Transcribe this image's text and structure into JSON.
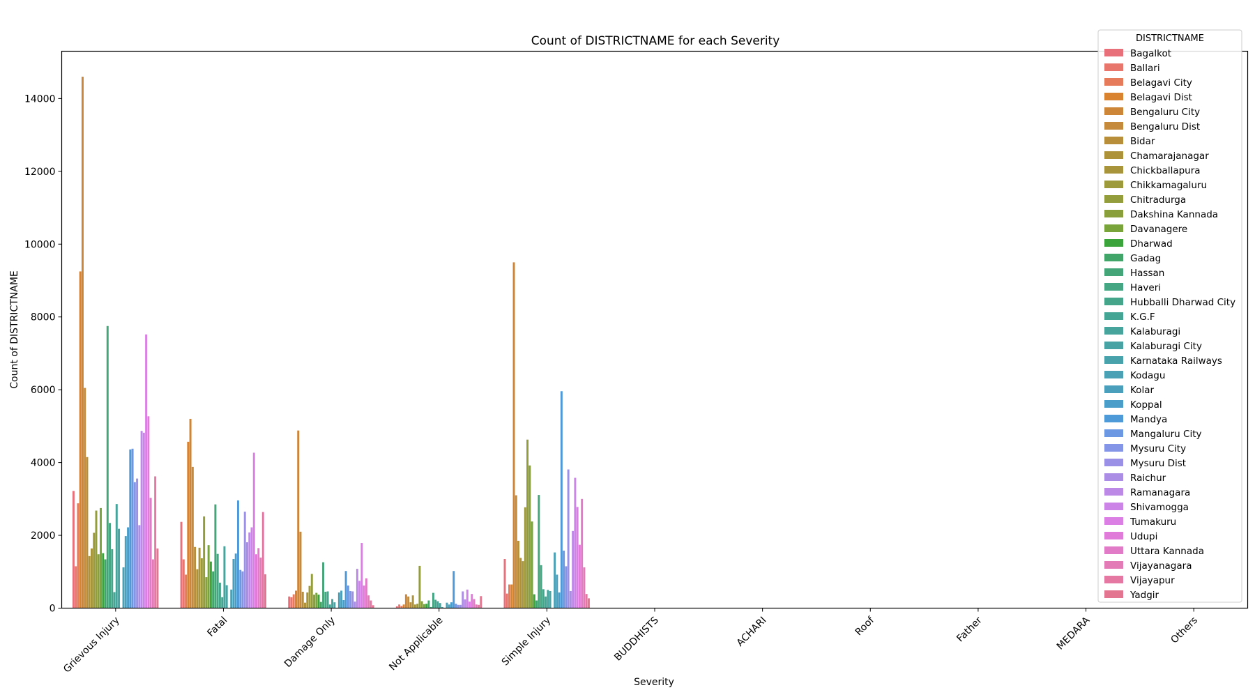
{
  "chart_data": {
    "type": "bar",
    "title": "Count of DISTRICTNAME for each Severity",
    "xlabel": "Severity",
    "ylabel": "Count of DISTRICTNAME",
    "ylim": [
      0,
      15300
    ],
    "yticks": [
      0,
      2000,
      4000,
      6000,
      8000,
      10000,
      12000,
      14000
    ],
    "grid": false,
    "legend_title": "DISTRICTNAME",
    "legend_position": "top-right",
    "categories": [
      "Grievous Injury",
      "Fatal",
      "Damage Only",
      "Not Applicable",
      "Simple Injury",
      "BUDDHISTS",
      "ACHARI",
      "Roof",
      "Father",
      "MEDARA",
      "Others"
    ],
    "series": [
      {
        "name": "Bagalkot",
        "color": "#e8707a",
        "values": [
          3220,
          2370,
          320,
          50,
          1350,
          0,
          0,
          0,
          0,
          0,
          0
        ]
      },
      {
        "name": "Ballari",
        "color": "#e8766d",
        "values": [
          1150,
          1340,
          300,
          100,
          400,
          0,
          0,
          0,
          0,
          0,
          0
        ]
      },
      {
        "name": "Belagavi City",
        "color": "#e67b5c",
        "values": [
          2880,
          920,
          380,
          60,
          650,
          0,
          0,
          0,
          0,
          0,
          0
        ]
      },
      {
        "name": "Belagavi Dist",
        "color": "#d9822f",
        "values": [
          9250,
          4570,
          480,
          100,
          650,
          0,
          0,
          0,
          0,
          0,
          0
        ]
      },
      {
        "name": "Bengaluru City",
        "color": "#cd8537",
        "values": [
          14600,
          5200,
          4880,
          380,
          9500,
          0,
          0,
          0,
          0,
          0,
          0
        ]
      },
      {
        "name": "Bengaluru Dist",
        "color": "#c68a3c",
        "values": [
          6050,
          3880,
          2100,
          320,
          3100,
          0,
          0,
          0,
          0,
          0,
          0
        ]
      },
      {
        "name": "Bidar",
        "color": "#b98e3a",
        "values": [
          4150,
          1680,
          450,
          160,
          1850,
          0,
          0,
          0,
          0,
          0,
          0
        ]
      },
      {
        "name": "Chamarajanagar",
        "color": "#ae923a",
        "values": [
          1430,
          1070,
          150,
          350,
          1380,
          0,
          0,
          0,
          0,
          0,
          0
        ]
      },
      {
        "name": "Chickballapura",
        "color": "#a8953b",
        "values": [
          1640,
          1660,
          430,
          100,
          1290,
          0,
          0,
          0,
          0,
          0,
          0
        ]
      },
      {
        "name": "Chikkamagaluru",
        "color": "#9d9a3b",
        "values": [
          2070,
          1370,
          610,
          120,
          2770,
          0,
          0,
          0,
          0,
          0,
          0
        ]
      },
      {
        "name": "Chitradurga",
        "color": "#939d3b",
        "values": [
          2680,
          2520,
          940,
          1160,
          4630,
          0,
          0,
          0,
          0,
          0,
          0
        ]
      },
      {
        "name": "Dakshina Kannada",
        "color": "#889f3b",
        "values": [
          1480,
          850,
          370,
          190,
          3920,
          0,
          0,
          0,
          0,
          0,
          0
        ]
      },
      {
        "name": "Davanagere",
        "color": "#79a43b",
        "values": [
          2750,
          1730,
          420,
          110,
          2380,
          0,
          0,
          0,
          0,
          0,
          0
        ]
      },
      {
        "name": "Dharwad",
        "color": "#3ba53b",
        "values": [
          1510,
          1280,
          370,
          120,
          380,
          0,
          0,
          0,
          0,
          0,
          0
        ]
      },
      {
        "name": "Gadag",
        "color": "#41a56a",
        "values": [
          1340,
          1010,
          170,
          210,
          210,
          0,
          0,
          0,
          0,
          0,
          0
        ]
      },
      {
        "name": "Hassan",
        "color": "#43a578",
        "values": [
          7750,
          2850,
          1260,
          30,
          3110,
          0,
          0,
          0,
          0,
          0,
          0
        ]
      },
      {
        "name": "Haveri",
        "color": "#44a682",
        "values": [
          2340,
          1490,
          450,
          420,
          1180,
          0,
          0,
          0,
          0,
          0,
          0
        ]
      },
      {
        "name": "Hubballi Dharwad City",
        "color": "#45a58b",
        "values": [
          1620,
          700,
          460,
          230,
          520,
          0,
          0,
          0,
          0,
          0,
          0
        ]
      },
      {
        "name": "K.G.F",
        "color": "#45a595",
        "values": [
          440,
          300,
          100,
          190,
          320,
          0,
          0,
          0,
          0,
          0,
          0
        ]
      },
      {
        "name": "Kalaburagi",
        "color": "#46a49d",
        "values": [
          2860,
          1700,
          250,
          140,
          500,
          0,
          0,
          0,
          0,
          0,
          0
        ]
      },
      {
        "name": "Kalaburagi City",
        "color": "#47a3a4",
        "values": [
          2180,
          630,
          160,
          30,
          470,
          0,
          0,
          0,
          0,
          0,
          0
        ]
      },
      {
        "name": "Karnataka Railways",
        "color": "#48a2ac",
        "values": [
          0,
          0,
          0,
          0,
          0,
          0,
          0,
          0,
          0,
          0,
          0
        ]
      },
      {
        "name": "Kodagu",
        "color": "#4aa0b4",
        "values": [
          1120,
          510,
          430,
          150,
          1530,
          0,
          0,
          0,
          0,
          0,
          0
        ]
      },
      {
        "name": "Kolar",
        "color": "#4a9fbd",
        "values": [
          1980,
          1350,
          480,
          100,
          920,
          0,
          0,
          0,
          0,
          0,
          0
        ]
      },
      {
        "name": "Koppal",
        "color": "#4b9dc9",
        "values": [
          2220,
          1500,
          220,
          160,
          430,
          0,
          0,
          0,
          0,
          0,
          0
        ]
      },
      {
        "name": "Mandya",
        "color": "#4e9ad8",
        "values": [
          4360,
          2960,
          1020,
          1020,
          5960,
          0,
          0,
          0,
          0,
          0,
          0
        ]
      },
      {
        "name": "Mangaluru City",
        "color": "#6b97e3",
        "values": [
          4380,
          1050,
          620,
          120,
          1580,
          0,
          0,
          0,
          0,
          0,
          0
        ]
      },
      {
        "name": "Mysuru City",
        "color": "#8494e6",
        "values": [
          3460,
          1010,
          470,
          90,
          1150,
          0,
          0,
          0,
          0,
          0,
          0
        ]
      },
      {
        "name": "Mysuru Dist",
        "color": "#9a90e6",
        "values": [
          3560,
          2650,
          460,
          90,
          3810,
          0,
          0,
          0,
          0,
          0,
          0
        ]
      },
      {
        "name": "Raichur",
        "color": "#ab8de6",
        "values": [
          2280,
          1810,
          180,
          460,
          470,
          0,
          0,
          0,
          0,
          0,
          0
        ]
      },
      {
        "name": "Ramanagara",
        "color": "#bd89e6",
        "values": [
          4870,
          2080,
          1080,
          240,
          2120,
          0,
          0,
          0,
          0,
          0,
          0
        ]
      },
      {
        "name": "Shivamogga",
        "color": "#cc84e6",
        "values": [
          4820,
          2220,
          750,
          510,
          3580,
          0,
          0,
          0,
          0,
          0,
          0
        ]
      },
      {
        "name": "Tumakuru",
        "color": "#db7fe5",
        "values": [
          7520,
          4270,
          1790,
          180,
          2780,
          0,
          0,
          0,
          0,
          0,
          0
        ]
      },
      {
        "name": "Udupi",
        "color": "#e17bd9",
        "values": [
          5270,
          1480,
          620,
          390,
          1740,
          0,
          0,
          0,
          0,
          0,
          0
        ]
      },
      {
        "name": "Uttara Kannada",
        "color": "#e27bc7",
        "values": [
          3030,
          1650,
          820,
          250,
          3000,
          0,
          0,
          0,
          0,
          0,
          0
        ]
      },
      {
        "name": "Vijayanagara",
        "color": "#e37bb6",
        "values": [
          1340,
          1390,
          350,
          100,
          1120,
          0,
          0,
          0,
          0,
          0,
          0
        ]
      },
      {
        "name": "Vijayapur",
        "color": "#e478a3",
        "values": [
          3620,
          2640,
          210,
          90,
          390,
          0,
          0,
          0,
          0,
          0,
          0
        ]
      },
      {
        "name": "Yadgir",
        "color": "#e47590",
        "values": [
          1640,
          930,
          80,
          330,
          270,
          0,
          0,
          0,
          0,
          0,
          0
        ]
      }
    ]
  }
}
